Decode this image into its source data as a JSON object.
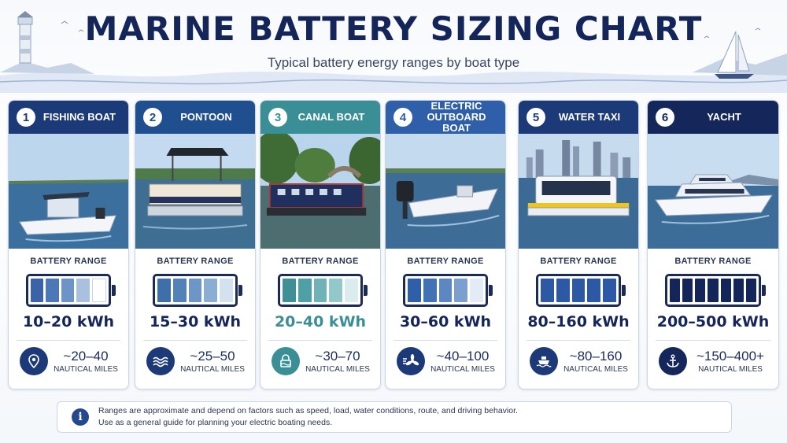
{
  "header": {
    "title": "MARINE BATTERY SIZING CHART",
    "subtitle": "Typical battery energy ranges by boat type"
  },
  "cards": [
    {
      "number": "1",
      "name": "FISHING BOAT",
      "range_label": "BATTERY RANGE",
      "kwh": "10–20 kWh",
      "distance": "~20–40",
      "distance_unit": "NAUTICAL MILES",
      "icon": "location-pin-icon",
      "header_color": "#1d3a78",
      "battery_level": 0.6
    },
    {
      "number": "2",
      "name": "PONTOON",
      "range_label": "BATTERY RANGE",
      "kwh": "15–30 kWh",
      "distance": "~25–50",
      "distance_unit": "NAUTICAL MILES",
      "icon": "waves-icon",
      "header_color": "#1f4f8f",
      "battery_level": 0.8
    },
    {
      "number": "3",
      "name": "CANAL BOAT",
      "range_label": "BATTERY RANGE",
      "kwh": "20–40 kWh",
      "distance": "~30–70",
      "distance_unit": "NAUTICAL MILES",
      "icon": "lock-icon",
      "header_color": "#3a8f96",
      "battery_level": 0.8
    },
    {
      "number": "4",
      "name": "ELECTRIC OUTBOARD BOAT",
      "range_label": "BATTERY RANGE",
      "kwh": "30–60 kWh",
      "distance": "~40–100",
      "distance_unit": "NAUTICAL MILES",
      "icon": "propeller-icon",
      "header_color": "#2e5fa8",
      "battery_level": 0.8
    },
    {
      "number": "5",
      "name": "WATER TAXI",
      "range_label": "BATTERY RANGE",
      "kwh": "80–160 kWh",
      "distance": "~80–160",
      "distance_unit": "NAUTICAL MILES",
      "icon": "boat-icon",
      "header_color": "#1d3a78",
      "battery_level": 1.0
    },
    {
      "number": "6",
      "name": "YACHT",
      "range_label": "BATTERY RANGE",
      "kwh": "200–500 kWh",
      "distance": "~150–400+",
      "distance_unit": "NAUTICAL MILES",
      "icon": "anchor-icon",
      "header_color": "#15275a",
      "battery_level": 1.0
    }
  ],
  "note": {
    "line1": "Ranges are approximate and depend on factors such as speed, load, water conditions, route, and driving behavior.",
    "line2": "Use as a general guide for planning your electric boating needs."
  }
}
